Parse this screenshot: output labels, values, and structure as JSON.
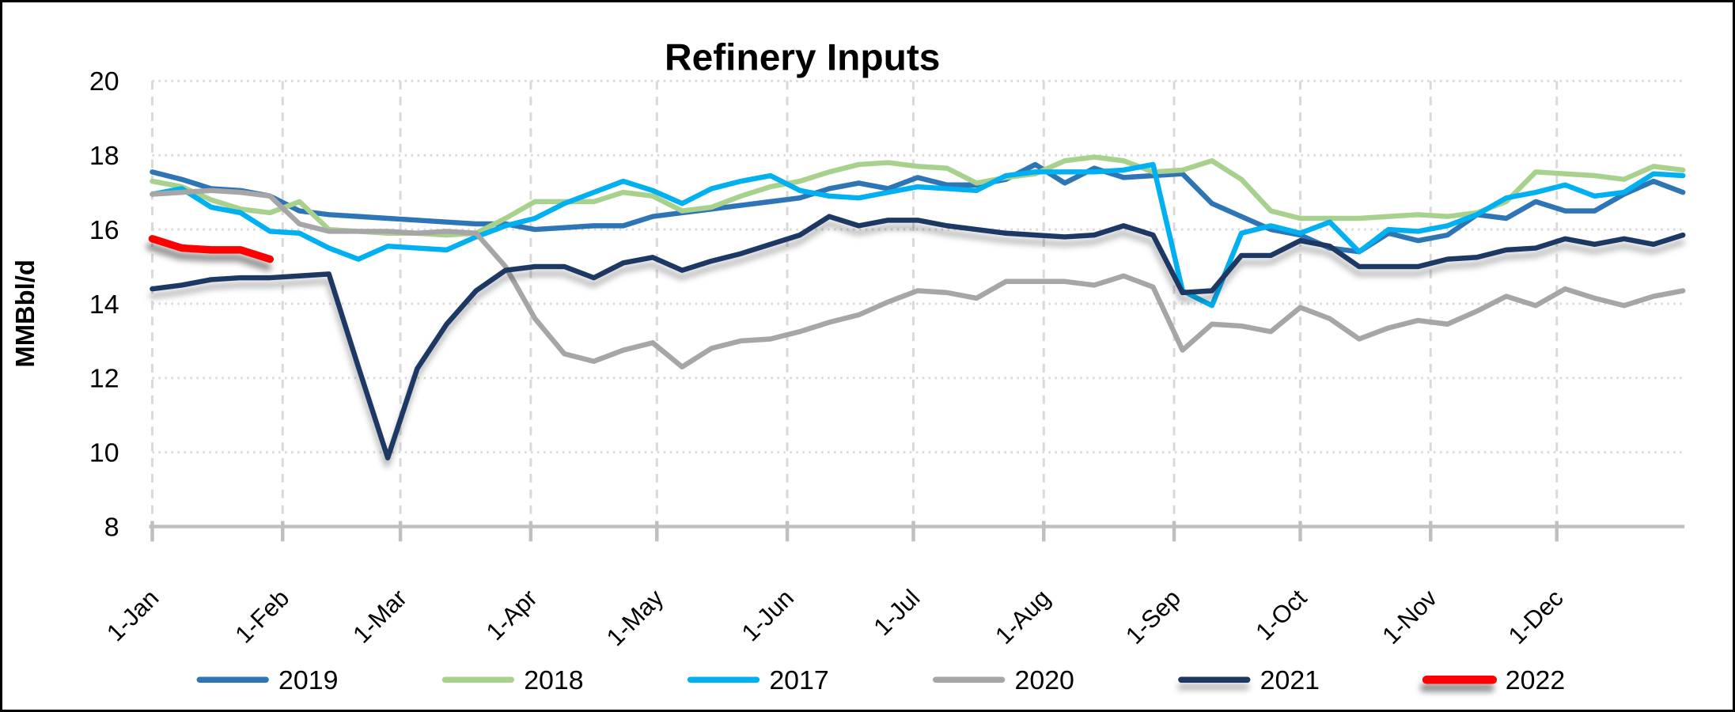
{
  "title": "Refinery Inputs",
  "y_axis": {
    "label": "MMBbl/d",
    "min": 8,
    "max": 20,
    "tick_step": 2,
    "tick_values": [
      20,
      18,
      16,
      14,
      12,
      10,
      8
    ]
  },
  "x_axis": {
    "tick_labels": [
      "1-Jan",
      "1-Feb",
      "1-Mar",
      "1-Apr",
      "1-May",
      "1-Jun",
      "1-Jul",
      "1-Aug",
      "1-Sep",
      "1-Oct",
      "1-Nov",
      "1-Dec"
    ],
    "tick_days": [
      0,
      31,
      59,
      90,
      120,
      151,
      181,
      212,
      243,
      273,
      304,
      334
    ],
    "total_days": 364
  },
  "legend": {
    "position": "bottom",
    "items": [
      "2019",
      "2018",
      "2017",
      "2020",
      "2021",
      "2022"
    ]
  },
  "chart_data": {
    "type": "line",
    "title": "Refinery Inputs",
    "xlabel": "",
    "ylabel": "MMBbl/d",
    "ylim": [
      8,
      20
    ],
    "grid": true,
    "gridline_color": "#D9D9D9",
    "axis_color": "#BFBFBF",
    "background_color": "#FFFFFF",
    "x_unit": "weekly",
    "week_interval_days": 7,
    "legend_position": "bottom",
    "series": [
      {
        "name": "2019",
        "color": "#2E75B6",
        "line_width": 6.5,
        "shadow": false,
        "values": [
          17.55,
          17.35,
          17.1,
          17.05,
          16.9,
          16.5,
          16.4,
          16.35,
          16.3,
          16.25,
          16.2,
          16.15,
          16.15,
          16.0,
          16.05,
          16.1,
          16.1,
          16.35,
          16.45,
          16.55,
          16.65,
          16.75,
          16.85,
          17.1,
          17.25,
          17.1,
          17.4,
          17.2,
          17.2,
          17.35,
          17.75,
          17.25,
          17.65,
          17.4,
          17.45,
          17.5,
          16.7,
          16.35,
          16.0,
          15.85,
          15.5,
          15.4,
          15.9,
          15.7,
          15.85,
          16.4,
          16.3,
          16.75,
          16.5,
          16.5,
          16.95,
          17.3,
          17.0
        ]
      },
      {
        "name": "2018",
        "color": "#A9D18E",
        "line_width": 6.5,
        "shadow": false,
        "values": [
          17.3,
          17.15,
          16.8,
          16.55,
          16.45,
          16.75,
          16.0,
          15.95,
          15.9,
          15.9,
          15.85,
          15.9,
          16.3,
          16.75,
          16.75,
          16.75,
          17.0,
          16.9,
          16.5,
          16.6,
          16.9,
          17.15,
          17.3,
          17.55,
          17.75,
          17.8,
          17.7,
          17.65,
          17.25,
          17.4,
          17.5,
          17.85,
          17.95,
          17.85,
          17.55,
          17.6,
          17.85,
          17.35,
          16.5,
          16.3,
          16.3,
          16.3,
          16.35,
          16.4,
          16.35,
          16.45,
          16.75,
          17.55,
          17.5,
          17.45,
          17.35,
          17.7,
          17.6
        ]
      },
      {
        "name": "2017",
        "color": "#00B0F0",
        "line_width": 6.5,
        "shadow": false,
        "values": [
          16.95,
          17.1,
          16.6,
          16.45,
          15.95,
          15.9,
          15.5,
          15.2,
          15.55,
          15.5,
          15.45,
          15.8,
          16.1,
          16.3,
          16.7,
          17.0,
          17.3,
          17.05,
          16.7,
          17.1,
          17.3,
          17.45,
          17.05,
          16.9,
          16.85,
          17.0,
          17.15,
          17.1,
          17.05,
          17.45,
          17.55,
          17.55,
          17.55,
          17.6,
          17.75,
          14.35,
          13.95,
          15.9,
          16.1,
          15.9,
          16.2,
          15.4,
          16.0,
          15.95,
          16.1,
          16.4,
          16.85,
          17.0,
          17.2,
          16.9,
          17.0,
          17.5,
          17.45
        ]
      },
      {
        "name": "2020",
        "color": "#A6A6A6",
        "line_width": 6.5,
        "shadow": false,
        "values": [
          16.95,
          17.0,
          17.05,
          17.0,
          16.9,
          16.15,
          15.95,
          15.95,
          15.95,
          15.9,
          15.95,
          15.9,
          15.0,
          13.6,
          12.65,
          12.45,
          12.75,
          12.95,
          12.3,
          12.8,
          13.0,
          13.05,
          13.25,
          13.5,
          13.7,
          14.05,
          14.35,
          14.3,
          14.15,
          14.6,
          14.6,
          14.6,
          14.5,
          14.75,
          14.45,
          12.75,
          13.45,
          13.4,
          13.25,
          13.9,
          13.6,
          13.05,
          13.35,
          13.55,
          13.45,
          13.8,
          14.2,
          13.95,
          14.4,
          14.15,
          13.95,
          14.2,
          14.35
        ]
      },
      {
        "name": "2021",
        "color": "#1F3864",
        "line_width": 6.5,
        "shadow": "soft",
        "values": [
          14.4,
          14.5,
          14.65,
          14.7,
          14.7,
          14.75,
          14.8,
          12.3,
          9.85,
          12.25,
          13.45,
          14.35,
          14.9,
          15.0,
          15.0,
          14.7,
          15.1,
          15.25,
          14.9,
          15.15,
          15.35,
          15.6,
          15.85,
          16.35,
          16.1,
          16.25,
          16.25,
          16.1,
          16.0,
          15.9,
          15.85,
          15.8,
          15.85,
          16.1,
          15.85,
          14.3,
          14.35,
          15.3,
          15.3,
          15.7,
          15.55,
          15.0,
          15.0,
          15.0,
          15.2,
          15.25,
          15.45,
          15.5,
          15.75,
          15.6,
          15.75,
          15.6,
          15.85
        ]
      },
      {
        "name": "2022",
        "color": "#FF0000",
        "line_width": 9.5,
        "shadow": "strong",
        "values": [
          15.75,
          15.5,
          15.45,
          15.45,
          15.2
        ]
      }
    ]
  }
}
